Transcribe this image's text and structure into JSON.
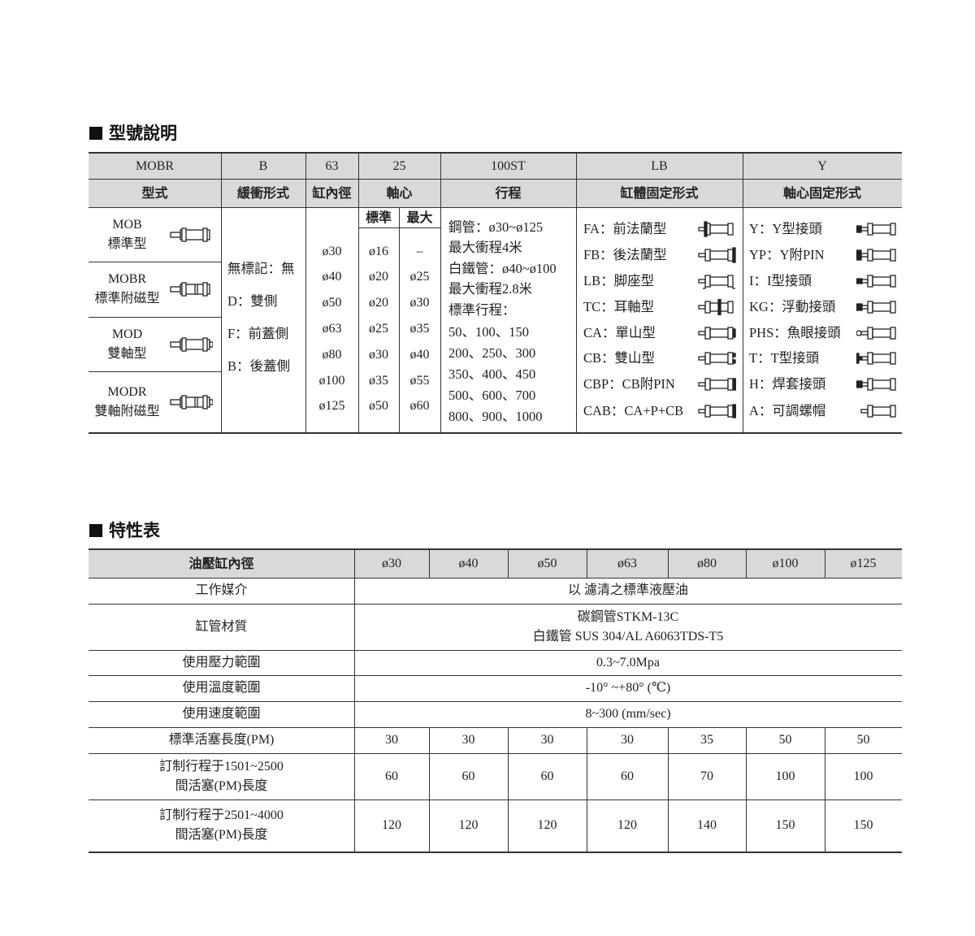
{
  "section1": {
    "title": "型號說明",
    "code_row": [
      "MOBR",
      "B",
      "63",
      "25",
      "100ST",
      "LB",
      "Y"
    ],
    "label_row": [
      "型式",
      "緩衝形式",
      "缸內徑",
      "軸心",
      "行程",
      "缸體固定形式",
      "軸心固定形式"
    ],
    "shaft_sub": [
      "標準",
      "最大"
    ],
    "types": [
      {
        "code": "MOB",
        "name": "標準型",
        "icon": "cylinder-single-rod-icon"
      },
      {
        "code": "MOBR",
        "name": "標準附磁型",
        "icon": "cylinder-magnetic-icon"
      },
      {
        "code": "MOD",
        "name": "雙軸型",
        "icon": "cylinder-double-rod-icon"
      },
      {
        "code": "MODR",
        "name": "雙軸附磁型",
        "icon": "cylinder-double-rod-magnetic-icon"
      }
    ],
    "cushion": [
      "無標記：無",
      "D：雙側",
      "F：前蓋側",
      "B：後蓋側"
    ],
    "bores": [
      "ø30",
      "ø40",
      "ø50",
      "ø63",
      "ø80",
      "ø100",
      "ø125"
    ],
    "shaft_std": [
      "ø16",
      "ø20",
      "ø20",
      "ø25",
      "ø30",
      "ø35",
      "ø50"
    ],
    "shaft_max": [
      "–",
      "ø25",
      "ø30",
      "ø35",
      "ø40",
      "ø55",
      "ø60"
    ],
    "stroke": [
      "鋼管：ø30~ø125",
      "最大衝程4米",
      "白鐵管：ø40~ø100",
      "最大衝程2.8米",
      "標準行程：",
      "50、100、150",
      "200、250、300",
      "350、400、450",
      "500、600、700",
      "800、900、1000"
    ],
    "body_mount": [
      {
        "label": "FA：前法蘭型",
        "icon": "front-flange-icon"
      },
      {
        "label": "FB：後法蘭型",
        "icon": "rear-flange-icon"
      },
      {
        "label": "LB：脚座型",
        "icon": "foot-mount-icon"
      },
      {
        "label": "TC：耳軸型",
        "icon": "trunnion-icon"
      },
      {
        "label": "CA：單山型",
        "icon": "single-clevis-icon"
      },
      {
        "label": "CB：雙山型",
        "icon": "double-clevis-icon"
      },
      {
        "label": "CBP：CB附PIN",
        "icon": "double-clevis-pin-icon"
      },
      {
        "label": "CAB：CA+P+CB",
        "icon": "clevis-combo-icon"
      }
    ],
    "rod_mount": [
      {
        "label": "Y：Y型接頭",
        "icon": "y-joint-icon"
      },
      {
        "label": "YP：Y附PIN",
        "icon": "y-joint-pin-icon"
      },
      {
        "label": "I：I型接頭",
        "icon": "i-joint-icon"
      },
      {
        "label": "KG：浮動接頭",
        "icon": "floating-joint-icon"
      },
      {
        "label": "PHS：魚眼接頭",
        "icon": "rod-eye-icon"
      },
      {
        "label": "T：T型接頭",
        "icon": "t-joint-icon"
      },
      {
        "label": "H：焊套接頭",
        "icon": "weld-joint-icon"
      },
      {
        "label": "A：可調螺帽",
        "icon": "adjust-nut-icon"
      }
    ]
  },
  "section2": {
    "title": "特性表",
    "header_label": "油壓缸內徑",
    "bores": [
      "ø30",
      "ø40",
      "ø50",
      "ø63",
      "ø80",
      "ø100",
      "ø125"
    ],
    "span_rows": [
      {
        "label": "工作媒介",
        "value": [
          "以 濾清之標準液壓油"
        ]
      },
      {
        "label": "缸管材質",
        "value": [
          "碳鋼管STKM-13C",
          "白鐵管 SUS 304/AL  A6063TDS-T5"
        ]
      },
      {
        "label": "使用壓力範圍",
        "value": [
          "0.3~7.0Mpa"
        ]
      },
      {
        "label": "使用溫度範圍",
        "value": [
          "-10°  ~+80°  (℃)"
        ]
      },
      {
        "label": "使用速度範圍",
        "value": [
          "8~300 (mm/sec)"
        ]
      }
    ],
    "value_rows": [
      {
        "label": [
          "標準活塞長度(PM)"
        ],
        "values": [
          "30",
          "30",
          "30",
          "30",
          "35",
          "50",
          "50"
        ]
      },
      {
        "label": [
          "訂制行程于1501~2500",
          "間活塞(PM)長度"
        ],
        "values": [
          "60",
          "60",
          "60",
          "60",
          "70",
          "100",
          "100"
        ]
      },
      {
        "label": [
          "訂制行程于2501~4000",
          "間活塞(PM)長度"
        ],
        "values": [
          "120",
          "120",
          "120",
          "120",
          "140",
          "150",
          "150"
        ]
      }
    ]
  }
}
